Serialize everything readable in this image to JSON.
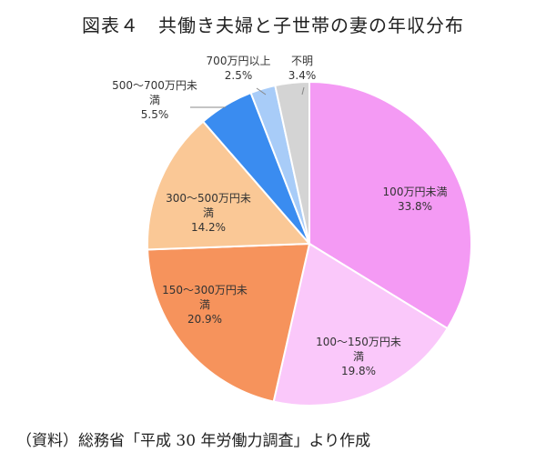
{
  "title": "図表４　共働き夫婦と子世帯の妻の年収分布",
  "source": "（資料）総務省「平成 30 年労働力調査」より作成",
  "chart_data": {
    "type": "pie",
    "title": "図表４　共働き夫婦と子世帯の妻の年収分布",
    "slices": [
      {
        "label": "100万円未満",
        "value": 33.8,
        "value_label": "33.8%",
        "color": "#F49AF4"
      },
      {
        "label": "100～150万円未満",
        "value": 19.8,
        "value_label": "19.8%",
        "color": "#FAC8FA"
      },
      {
        "label": "150～300万円未満",
        "value": 20.9,
        "value_label": "20.9%",
        "color": "#F6935C"
      },
      {
        "label": "300～500万円未満",
        "value": 14.2,
        "value_label": "14.2%",
        "color": "#FAC896"
      },
      {
        "label": "500～700万円未満",
        "value": 5.5,
        "value_label": "5.5%",
        "color": "#3A8CF0"
      },
      {
        "label": "700万円以上",
        "value": 2.5,
        "value_label": "2.5%",
        "color": "#A8CCF8"
      },
      {
        "label": "不明",
        "value": 3.4,
        "value_label": "3.4%",
        "color": "#D4D4D4"
      }
    ]
  }
}
